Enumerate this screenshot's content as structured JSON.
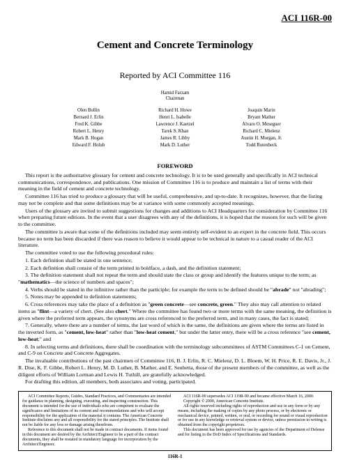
{
  "doc_id": "ACI 116R-00",
  "title": "Cement and Concrete Terminology",
  "subtitle": "Reported by ACI Committee 116",
  "chair": {
    "name": "Hamid Farzam",
    "role": "Chairman"
  },
  "committee": [
    "Olen Bollin",
    "Richard H. Howe",
    "Joaquin Marin",
    "Bernard J. Erlin",
    "Henri L. Isabelle",
    "Bryant Mather",
    "Fred K. Gibbe",
    "Lawrence J. Kaetzel",
    "Alvaro O. Meseguer",
    "Robert L. Henry",
    "Tarek S. Khan",
    "Richard C. Mielenz",
    "Mark B. Hogan",
    "James R. Libby",
    "Austin H. Morgan, Jr.",
    "Edward F. Holub",
    "Mark D. Luther",
    "Todd Rutenbeck"
  ],
  "foreword_heading": "FOREWORD",
  "paragraphs": {
    "p1": "This report is the authoritative glossary for cement and concrete technology. It is to be used generally and specifically in ACI technical communications, correspondence, and publications. One mission of Committee 116 is to produce and maintain a list of terms with their meaning in the field of cement and concrete technology.",
    "p2": "Committee 116 has tried to produce a glossary that will be useful, comprehensive, and up-to-date. It recognizes, however, that the listing may not be complete and that some definitions may be at variance with some commonly accepted meanings.",
    "p3": "Users of the glossary are invited to submit suggestions for changes and additions to ACI Headquarters for consideration by Committee 116 when preparing future editions. In the event that a user disagrees with any of the definitions, it is hoped that the reasons for such will be given to the committee.",
    "p4": "The committee is aware that some of the definitions included may seem entirely self-evident to an expert in the concrete field. This occurs because no term has been discarded if there was reason to believe it would appear to be technical in nature to a casual reader of the ACI literature.",
    "p5": "The committee voted to use the following procedural rules:"
  },
  "rules": {
    "r1": "1. Each definition shall be stated in one sentence;",
    "r2": "2. Each definition shall consist of the term printed in boldface, a dash, and the definition statement;",
    "r3a": "3. The definition statement shall not repeat the term and should state the class or group and identify the features unique to the term; as \"",
    "r3bold": "mathematics",
    "r3b": "—the science of numbers and spaces\";",
    "r4a": "4. Verbs should be stated in the infinitive rather than the participle; for example the term to be defined should be \"",
    "r4bold": "abrade",
    "r4b": "\" not \"abrading\";",
    "r5": "5. Notes may be appended to definition statements;",
    "r6a": "6. Cross references may take the place of a definition as \"",
    "r6bold1": "green concrete",
    "r6mid1": "—see ",
    "r6bold2": "concrete, green",
    "r6mid2": ".\" They also may call attention to related items as \"",
    "r6bold3": "flint",
    "r6mid3": "—a variety of chert. (See also ",
    "r6bold4": "chert",
    "r6b": ".\" Where the committee has found two or more terms with the same meaning, the definition is given where the preferred term appears, the synonyms are cross referenced to the preferred term, and in many cases, the fact is stated;",
    "r7a": "7. Generally, where there are a number of terms, the last word of which is the same, the definitions are given where the terms are listed in the inverted form, as \"",
    "r7bold1": "cement, low-heat",
    "r7mid1": "\" rather than \"",
    "r7bold2": "low-heat cement",
    "r7mid2": ",\" but under the latter entry, there will be a cross reference \"see ",
    "r7bold3": "cement, low-heat",
    "r7b": ";\" and",
    "r8": "8. In selecting terms and definitions, there shall be coordination with the terminology subcommittees of ASTM Committees C-1 on Cement, and C-9 on Concrete and Concrete Aggregates."
  },
  "closing": {
    "c1": "The invaluable contributions of the past chairmen of Committee 116, B. J. Erlin, R. C. Mielenz, D. L. Bloem, W. H. Price, R. E. Davis, Jr., J. R. Dise, K. F. Gibbe, Robert L. Henry, M. D. Luther, B. Mather, and E. Senbetta, those of the present members of the committee, as well as the diligent efforts of William Lorman and Lewis H. Tuthill, are gratefully acknowledged.",
    "c2": "For drafting this edition, all members, both associates and voting, participated."
  },
  "footer": {
    "left": [
      "ACI Committee Reports, Guides, Standard Practices, and Commentaries are intended for guidance in planning, designing, executing, and inspecting construction. This document is intended for the use of individuals who are competent to evaluate the significance and limitations of its content and recommendations and who will accept responsibility for the application of the material it contains. The American Concrete Institute disclaims any and all responsibility for the stated principles. The Institute shall not be liable for any loss or damage arising therefrom.",
      "Reference to this document shall not be made in contract documents. If items found in this document are desired by the Architect/Engineer to be a part of the contract documents, they shall be restated in mandatory language for incorporation by the Architect/Engineer."
    ],
    "right": [
      "ACI 116R-00 supersedes ACI 119R-90 and became effective March 16, 2000.",
      "Copyright © 2000, American Concrete Institute.",
      "All rights reserved including rights of reproduction and use in any form or by any means, including the making of copies by any photo process, or by electronic or mechanical device, printed, written, or oral, or recording for sound or visual reproduction or for use in any knowledge or retrieval system or device, unless permission in writing is obtained from the copyright proprietors.",
      "This document has been approved for use by agencies of the Department of Defense and for listing in the DoD Index of Specifications and Standards."
    ]
  },
  "page_num": "116R-1"
}
